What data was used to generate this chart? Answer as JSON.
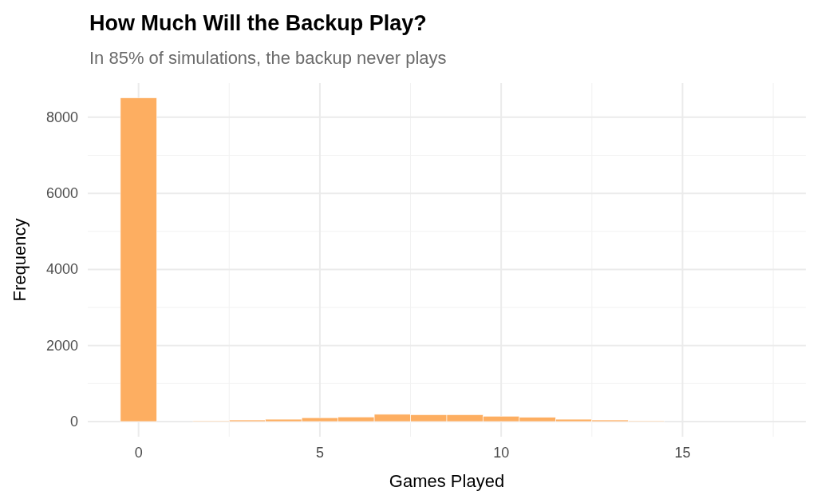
{
  "chart_data": {
    "type": "histogram",
    "title": "How Much Will the Backup Play?",
    "subtitle": "In 85% of simulations, the backup never plays",
    "xlabel": "Games Played",
    "ylabel": "Frequency",
    "bins": [
      -0.5,
      0.5,
      1.5,
      2.5,
      3.5,
      4.5,
      5.5,
      6.5,
      7.5,
      8.5,
      9.5,
      10.5,
      11.5,
      12.5,
      13.5,
      14.5,
      15.5,
      16.5,
      17.5
    ],
    "values": [
      8510,
      0,
      20,
      40,
      60,
      100,
      120,
      190,
      180,
      180,
      140,
      110,
      60,
      40,
      20,
      null,
      0,
      0
    ],
    "color": "#fdae61",
    "xlim": [
      -1.4,
      18.4
    ],
    "xticks": [
      0,
      5,
      10,
      15
    ],
    "ylim": [
      -400,
      8900
    ],
    "yticks": [
      0,
      2000,
      4000,
      6000,
      8000
    ],
    "grid": true
  }
}
